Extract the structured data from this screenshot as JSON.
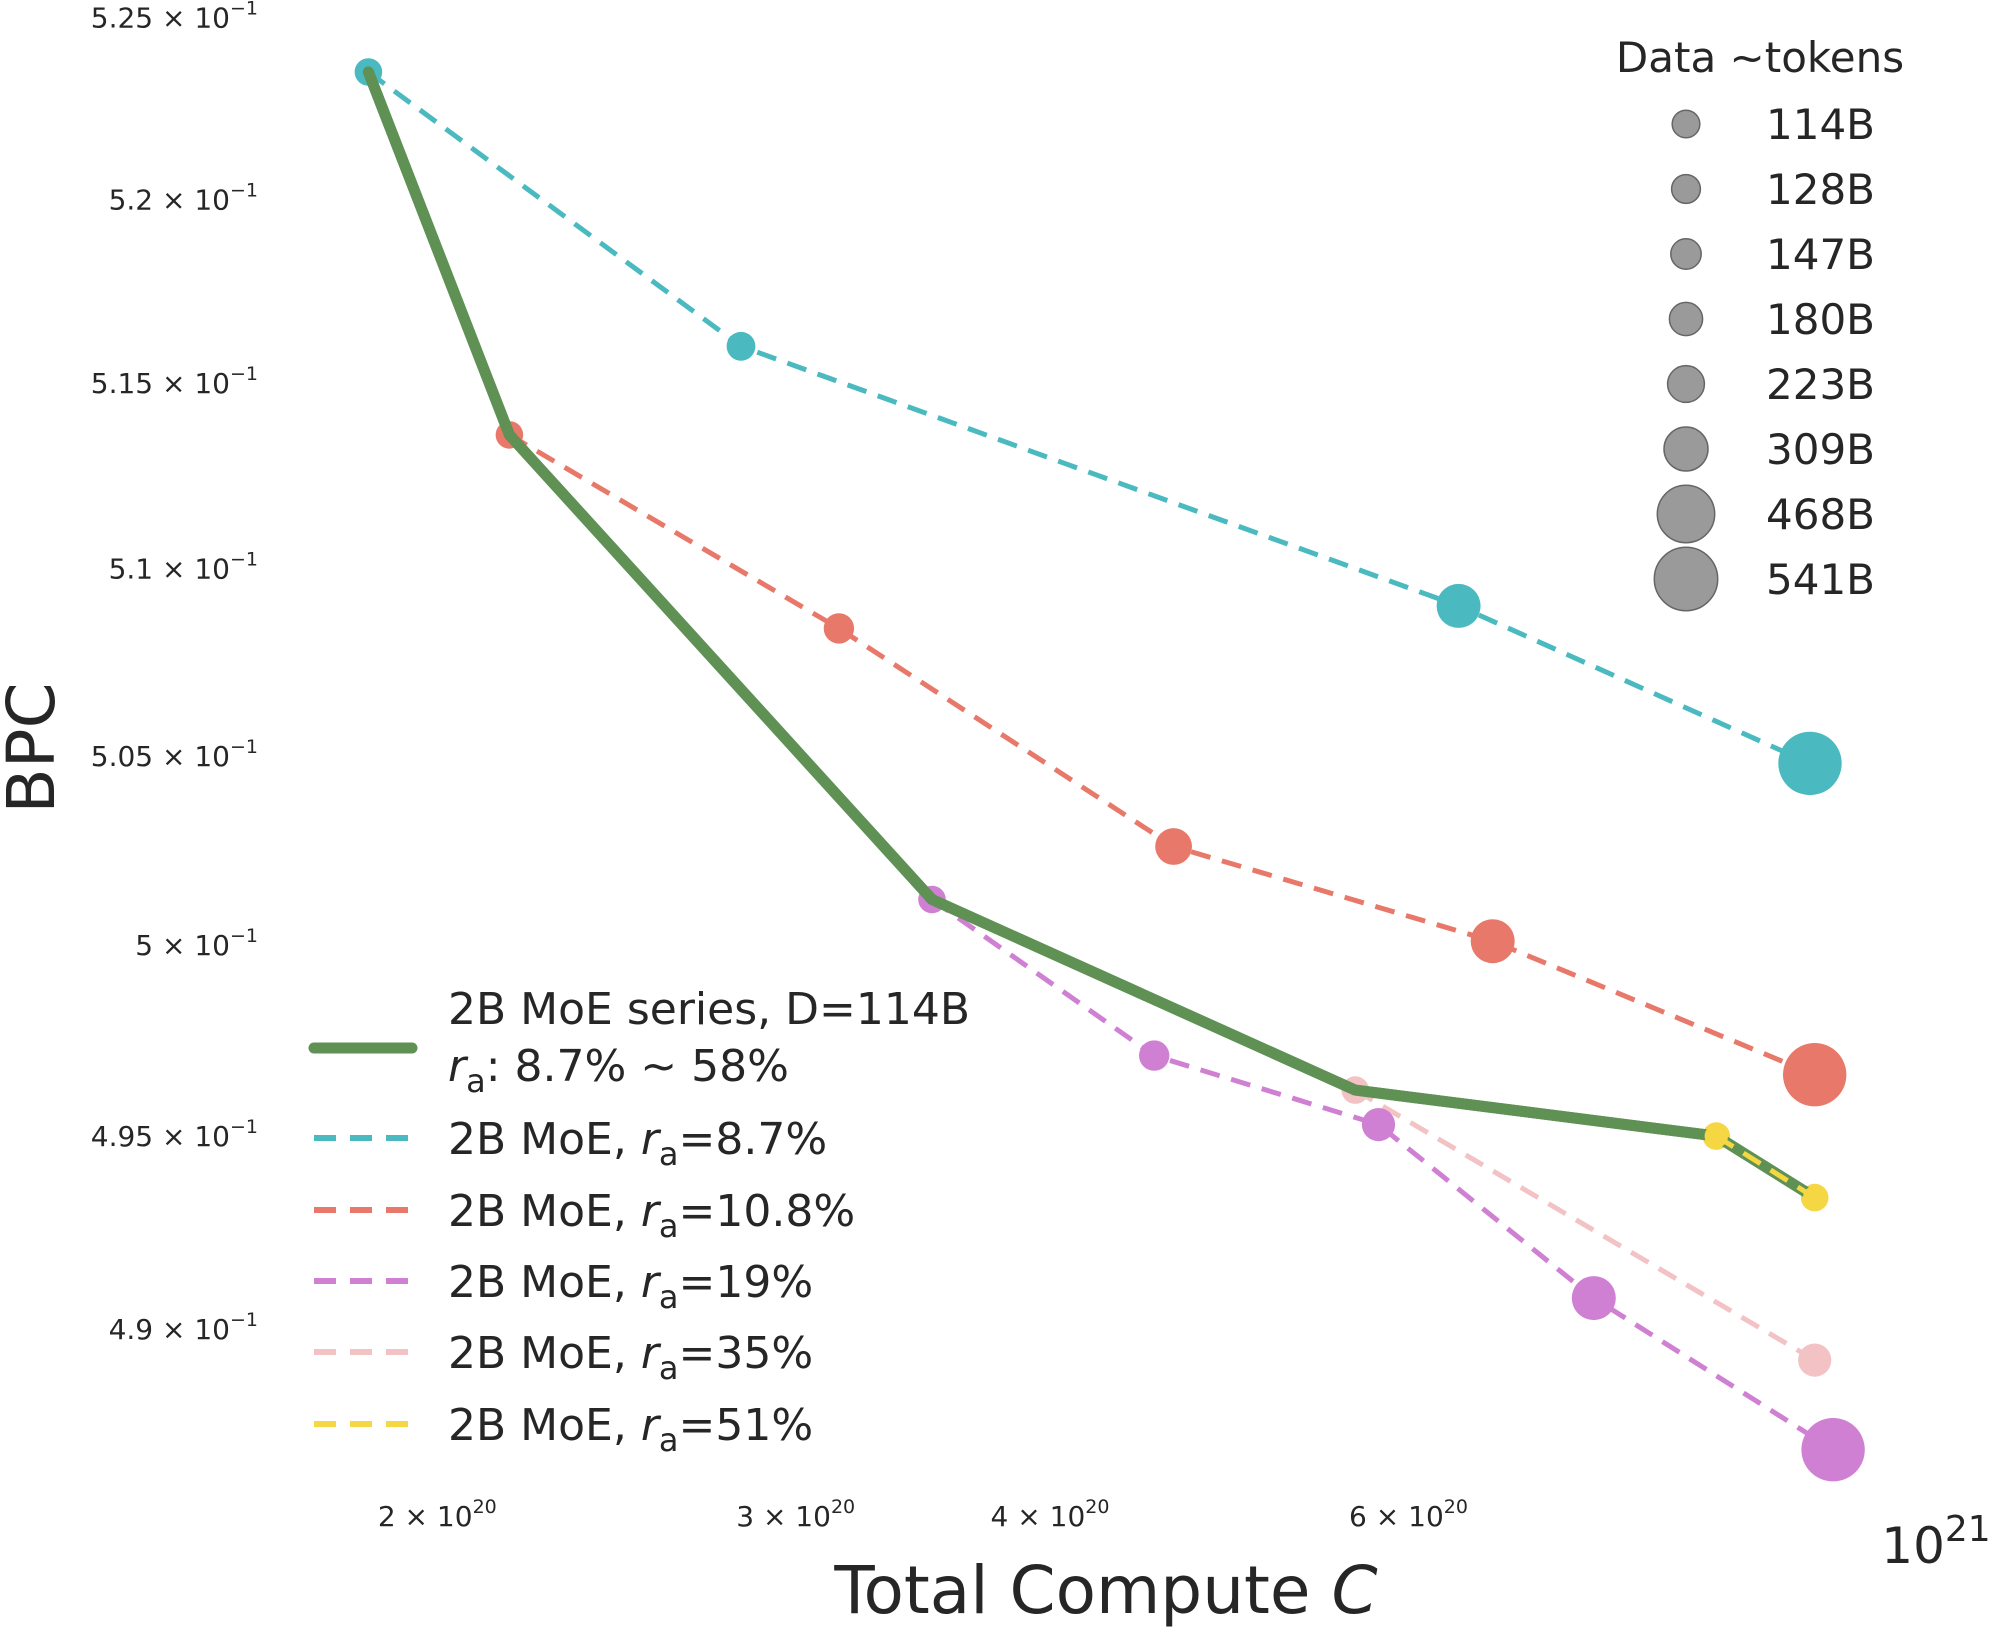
{
  "chart_data": {
    "type": "line",
    "x_scale": "log",
    "y_scale": "log",
    "xlabel_prefix": "Total Compute ",
    "xlabel_var": "C",
    "ylabel": "BPC",
    "xlim": [
      1.72e+20,
      1e+21
    ],
    "ylim": [
      0.4872,
      0.5251
    ],
    "x_ticks": [
      {
        "value": 2e+20,
        "mant": "2 × 10",
        "exp": "20"
      },
      {
        "value": 3e+20,
        "mant": "3 × 10",
        "exp": "20"
      },
      {
        "value": 4e+20,
        "mant": "4 × 10",
        "exp": "20"
      },
      {
        "value": 6e+20,
        "mant": "6 × 10",
        "exp": "20"
      }
    ],
    "x_major_tick": {
      "value": 1e+21,
      "base": "10",
      "exp": "21"
    },
    "y_ticks": [
      {
        "value": 0.525,
        "mant": "5.25 × 10",
        "exp": "−1"
      },
      {
        "value": 0.52,
        "mant": "5.2 × 10",
        "exp": "−1"
      },
      {
        "value": 0.515,
        "mant": "5.15 × 10",
        "exp": "−1"
      },
      {
        "value": 0.51,
        "mant": "5.1 × 10",
        "exp": "−1"
      },
      {
        "value": 0.505,
        "mant": "5.05 × 10",
        "exp": "−1"
      },
      {
        "value": 0.5,
        "mant": "5 × 10",
        "exp": "−1"
      },
      {
        "value": 0.495,
        "mant": "4.95 × 10",
        "exp": "−1"
      },
      {
        "value": 0.49,
        "mant": "4.9 × 10",
        "exp": "−1"
      }
    ],
    "grid": false,
    "series": [
      {
        "name": "2B MoE, r_a=8.7%",
        "label_prefix": "2B MoE, ",
        "label_sub_var": "r",
        "label_sub": "a",
        "label_suffix": "=8.7%",
        "color": "#4ABAC0",
        "dash": true,
        "points": [
          {
            "x": 1.85e+20,
            "y": 0.5235,
            "d": 114
          },
          {
            "x": 2.82e+20,
            "y": 0.516,
            "d": 128
          },
          {
            "x": 6.35e+20,
            "y": 0.509,
            "d": 309
          },
          {
            "x": 9.45e+20,
            "y": 0.5048,
            "d": 541
          }
        ]
      },
      {
        "name": "2B MoE, r_a=10.8%",
        "label_prefix": "2B MoE, ",
        "label_sub_var": "r",
        "label_sub": "a",
        "label_suffix": "=10.8%",
        "color": "#E8796A",
        "dash": true,
        "points": [
          {
            "x": 2.17e+20,
            "y": 0.5136,
            "d": 114
          },
          {
            "x": 3.15e+20,
            "y": 0.5084,
            "d": 147
          },
          {
            "x": 4.6e+20,
            "y": 0.5026,
            "d": 223
          },
          {
            "x": 6.6e+20,
            "y": 0.5001,
            "d": 309
          },
          {
            "x": 9.5e+20,
            "y": 0.4966,
            "d": 541
          }
        ]
      },
      {
        "name": "2B MoE, r_a=19%",
        "label_prefix": "2B MoE, ",
        "label_sub_var": "r",
        "label_sub": "a",
        "label_suffix": "=19%",
        "color": "#CF80D2",
        "dash": true,
        "points": [
          {
            "x": 3.5e+20,
            "y": 0.5012,
            "d": 114
          },
          {
            "x": 4.5e+20,
            "y": 0.4971,
            "d": 147
          },
          {
            "x": 5.8e+20,
            "y": 0.4953,
            "d": 180
          },
          {
            "x": 7.4e+20,
            "y": 0.4908,
            "d": 309
          },
          {
            "x": 9.7e+20,
            "y": 0.4869,
            "d": 541
          }
        ]
      },
      {
        "name": "2B MoE, r_a=35%",
        "label_prefix": "2B MoE, ",
        "label_sub_var": "r",
        "label_sub": "a",
        "label_suffix": "=35%",
        "color": "#F2C2C4",
        "dash": true,
        "points": [
          {
            "x": 5.65e+20,
            "y": 0.4962,
            "d": 114
          },
          {
            "x": 9.5e+20,
            "y": 0.4892,
            "d": 180
          }
        ]
      },
      {
        "name": "2B MoE, r_a=51%",
        "label_prefix": "2B MoE, ",
        "label_sub_var": "r",
        "label_sub": "a",
        "label_suffix": "=51%",
        "color": "#F5D744",
        "dash": true,
        "points": [
          {
            "x": 8.5e+20,
            "y": 0.495,
            "d": 114
          },
          {
            "x": 9.5e+20,
            "y": 0.4934,
            "d": 114
          }
        ]
      },
      {
        "name": "2B MoE series, D=114B",
        "label_line1": "2B MoE series, D=114B",
        "label_line2_var": "r",
        "label_line2_sub": "a",
        "label_line2_rest": ": 8.7% ~ 58%",
        "color": "#5F9155",
        "dash": false,
        "points": [
          {
            "x": 1.85e+20,
            "y": 0.5235
          },
          {
            "x": 2.17e+20,
            "y": 0.5136
          },
          {
            "x": 3.5e+20,
            "y": 0.5012
          },
          {
            "x": 5.65e+20,
            "y": 0.4962
          },
          {
            "x": 8.5e+20,
            "y": 0.495
          },
          {
            "x": 9.5e+20,
            "y": 0.4934
          }
        ]
      }
    ],
    "legend_order": [
      5,
      0,
      1,
      2,
      3,
      4
    ],
    "legend_placement": "lower-left",
    "size_legend": {
      "title": "Data ~tokens",
      "placement": "upper-right",
      "color": "#888888",
      "entries": [
        {
          "label": "114B",
          "d": 114
        },
        {
          "label": "128B",
          "d": 128
        },
        {
          "label": "147B",
          "d": 147
        },
        {
          "label": "180B",
          "d": 180
        },
        {
          "label": "223B",
          "d": 223
        },
        {
          "label": "309B",
          "d": 309
        },
        {
          "label": "468B",
          "d": 468
        },
        {
          "label": "541B",
          "d": 541
        }
      ]
    }
  }
}
